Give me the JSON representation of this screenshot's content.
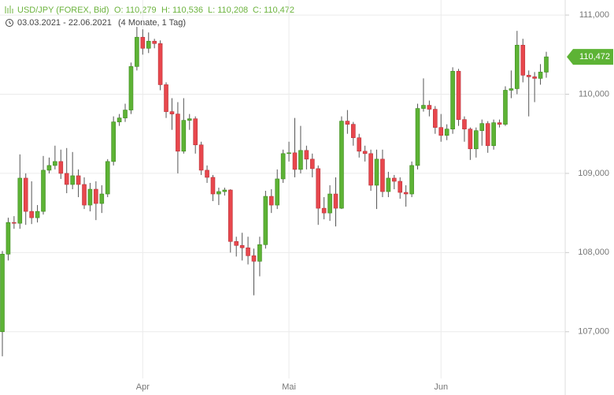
{
  "chart_data": {
    "type": "candlestick",
    "header": {
      "symbol": "USD/JPY (FOREX, Bid)",
      "open": "O: 110,279",
      "high": "H: 110,536",
      "low": "L: 110,208",
      "close": "C: 110,472",
      "range": "03.03.2021 - 22.06.2021",
      "duration": "(4 Monate, 1 Tag)"
    },
    "categories": [
      null,
      null,
      null,
      null,
      null,
      null,
      null,
      null,
      null,
      null,
      null,
      null,
      null,
      null,
      null,
      null,
      null,
      null,
      null,
      null,
      null,
      null,
      null,
      null,
      "Apr",
      null,
      null,
      null,
      null,
      null,
      null,
      null,
      null,
      null,
      null,
      null,
      null,
      null,
      null,
      null,
      null,
      null,
      null,
      null,
      null,
      null,
      null,
      null,
      null,
      "Mai",
      null,
      null,
      null,
      null,
      null,
      null,
      null,
      null,
      null,
      null,
      null,
      null,
      null,
      null,
      null,
      null,
      null,
      null,
      null,
      null,
      null,
      null,
      null,
      null,
      null,
      "Jun",
      null,
      null,
      null,
      null,
      null,
      null,
      null,
      null,
      null,
      null,
      null,
      null,
      null,
      null,
      null,
      null,
      null,
      null
    ],
    "open": [
      107.0,
      107.98,
      108.38,
      108.37,
      108.94,
      108.52,
      108.44,
      108.52,
      109.04,
      109.1,
      109.15,
      109.0,
      108.86,
      108.97,
      108.86,
      108.6,
      108.8,
      108.62,
      108.74,
      109.15,
      109.65,
      109.7,
      109.8,
      110.35,
      110.72,
      110.58,
      110.67,
      110.64,
      110.12,
      109.78,
      109.75,
      109.28,
      109.67,
      109.69,
      109.36,
      109.04,
      108.95,
      108.74,
      108.77,
      108.79,
      108.14,
      108.09,
      108.06,
      107.96,
      107.89,
      108.1,
      108.71,
      108.6,
      108.93,
      109.25,
      109.26,
      109.05,
      109.29,
      109.18,
      109.06,
      108.56,
      108.5,
      108.74,
      108.56,
      109.66,
      109.62,
      109.45,
      109.28,
      109.25,
      108.85,
      109.18,
      108.77,
      108.94,
      108.9,
      108.76,
      108.74,
      109.1,
      109.82,
      109.86,
      109.81,
      109.58,
      109.48,
      109.56,
      110.29,
      109.68,
      109.56,
      109.31,
      109.54,
      109.63,
      109.35,
      109.64,
      109.62,
      110.05,
      110.07,
      110.62,
      110.24,
      110.22,
      110.2,
      110.279
    ],
    "high": [
      108.02,
      108.44,
      108.46,
      109.24,
      109.0,
      108.9,
      108.6,
      109.22,
      109.2,
      109.35,
      109.3,
      109.32,
      109.27,
      109.05,
      108.95,
      108.88,
      108.9,
      108.85,
      109.18,
      109.72,
      109.75,
      109.88,
      110.4,
      110.85,
      110.82,
      110.78,
      110.7,
      110.68,
      110.15,
      109.95,
      109.9,
      109.95,
      109.75,
      109.72,
      109.4,
      109.1,
      108.98,
      108.82,
      108.82,
      108.8,
      108.2,
      108.25,
      108.2,
      108.05,
      108.2,
      108.78,
      108.8,
      109.05,
      109.3,
      109.4,
      109.7,
      109.6,
      109.35,
      109.25,
      109.1,
      108.7,
      108.85,
      108.95,
      109.72,
      109.8,
      109.65,
      109.5,
      109.35,
      109.3,
      109.3,
      109.3,
      109.02,
      108.98,
      108.95,
      108.85,
      109.15,
      109.88,
      110.2,
      109.92,
      109.85,
      109.75,
      109.62,
      110.34,
      110.32,
      109.72,
      109.58,
      109.58,
      109.68,
      109.66,
      109.68,
      109.68,
      110.1,
      110.3,
      110.8,
      110.7,
      110.3,
      110.28,
      110.38,
      110.536
    ],
    "low": [
      106.69,
      107.9,
      108.3,
      108.3,
      108.35,
      108.36,
      108.38,
      108.48,
      109.0,
      109.05,
      108.93,
      108.75,
      108.8,
      108.7,
      108.55,
      108.52,
      108.41,
      108.5,
      108.7,
      109.1,
      109.6,
      109.65,
      109.75,
      110.3,
      110.5,
      110.52,
      110.58,
      110.05,
      109.7,
      109.55,
      109.0,
      109.25,
      109.55,
      109.25,
      108.98,
      108.88,
      108.65,
      108.6,
      108.72,
      108.0,
      107.95,
      107.9,
      107.85,
      107.46,
      107.7,
      108.05,
      108.5,
      108.55,
      108.88,
      109.15,
      108.95,
      109.0,
      109.05,
      108.95,
      108.35,
      108.42,
      108.4,
      108.33,
      108.55,
      109.5,
      109.35,
      109.2,
      109.15,
      108.78,
      108.55,
      108.7,
      108.7,
      108.8,
      108.68,
      108.58,
      108.7,
      109.05,
      109.78,
      109.72,
      109.5,
      109.4,
      109.42,
      109.5,
      109.6,
      109.4,
      109.17,
      109.2,
      109.35,
      109.26,
      109.3,
      109.58,
      109.6,
      109.95,
      110.0,
      110.15,
      109.72,
      109.9,
      110.12,
      110.208
    ],
    "close": [
      107.98,
      108.38,
      108.37,
      108.94,
      108.52,
      108.44,
      108.52,
      109.04,
      109.1,
      109.15,
      109.0,
      108.86,
      108.97,
      108.86,
      108.6,
      108.8,
      108.62,
      108.74,
      109.15,
      109.65,
      109.7,
      109.8,
      110.35,
      110.72,
      110.58,
      110.67,
      110.64,
      110.12,
      109.78,
      109.75,
      109.28,
      109.67,
      109.69,
      109.36,
      109.04,
      108.95,
      108.74,
      108.77,
      108.79,
      108.14,
      108.09,
      108.06,
      107.96,
      107.89,
      108.1,
      108.71,
      108.6,
      108.93,
      109.25,
      109.26,
      109.05,
      109.29,
      109.18,
      109.06,
      108.56,
      108.5,
      108.74,
      108.56,
      109.66,
      109.62,
      109.45,
      109.28,
      109.25,
      108.85,
      109.18,
      108.77,
      108.94,
      108.9,
      108.76,
      108.74,
      109.1,
      109.82,
      109.86,
      109.81,
      109.58,
      109.48,
      109.56,
      110.29,
      109.68,
      109.56,
      109.31,
      109.54,
      109.63,
      109.35,
      109.64,
      109.62,
      110.05,
      110.07,
      110.62,
      110.24,
      110.22,
      110.2,
      110.28,
      110.472
    ],
    "last_label": "110,472",
    "up_color": "#5db335",
    "down_color": "#e8474d",
    "ylim": [
      106.41,
      111.19
    ],
    "yticks": [
      {
        "value": 107,
        "label": "107,000"
      },
      {
        "value": 108,
        "label": "108,000"
      },
      {
        "value": 109,
        "label": "109,000"
      },
      {
        "value": 110,
        "label": "110,000"
      },
      {
        "value": 111,
        "label": "111,000"
      }
    ],
    "grid": true
  }
}
